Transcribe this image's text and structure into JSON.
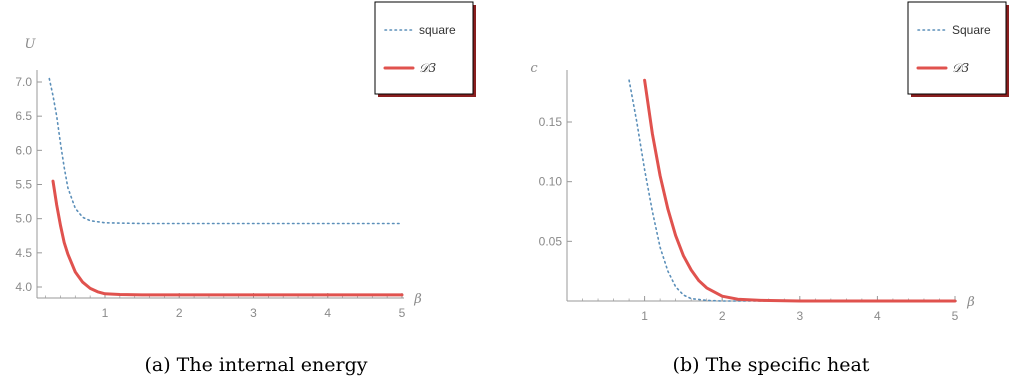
{
  "colors": {
    "square": "#5b8fb9",
    "d3": "#e0524e",
    "axis": "#999999",
    "tick_text": "#8a8a8a"
  },
  "chart_data": [
    {
      "type": "line",
      "caption": "(a)  The internal energy",
      "ylabel": "U",
      "xlabel": "β",
      "xlim": [
        0,
        5
      ],
      "ylim": [
        3.8,
        7.2
      ],
      "axis_origin": [
        0.2,
        3.8
      ],
      "xticks": [
        1,
        2,
        3,
        4,
        5
      ],
      "xtick_labels": [
        "1",
        "2",
        "3",
        "4",
        "5"
      ],
      "yticks": [
        4.0,
        4.5,
        5.0,
        5.5,
        6.0,
        6.5,
        7.0
      ],
      "ytick_labels": [
        "4.0",
        "4.5",
        "5.0",
        "5.5",
        "6.0",
        "6.5",
        "7.0"
      ],
      "legend": {
        "position": "top-right",
        "entries": [
          "square",
          "𝒟3"
        ]
      },
      "series": [
        {
          "name": "square",
          "style": "dotted",
          "x": [
            0.25,
            0.3,
            0.35,
            0.4,
            0.45,
            0.5,
            0.6,
            0.7,
            0.8,
            1.0,
            1.5,
            2,
            3,
            4,
            5
          ],
          "y": [
            7.05,
            6.8,
            6.5,
            6.1,
            5.75,
            5.45,
            5.15,
            5.02,
            4.97,
            4.94,
            4.93,
            4.93,
            4.93,
            4.93,
            4.93
          ]
        },
        {
          "name": "𝒟3",
          "style": "solid",
          "x": [
            0.3,
            0.35,
            0.4,
            0.45,
            0.5,
            0.6,
            0.7,
            0.8,
            0.9,
            1.0,
            1.2,
            1.5,
            2,
            3,
            4,
            5
          ],
          "y": [
            5.55,
            5.2,
            4.9,
            4.65,
            4.48,
            4.22,
            4.07,
            3.98,
            3.93,
            3.9,
            3.89,
            3.885,
            3.885,
            3.885,
            3.885,
            3.885
          ]
        }
      ]
    },
    {
      "type": "line",
      "caption": "(b)  The specific heat",
      "ylabel": "c_V",
      "xlabel": "β",
      "xlim": [
        0,
        5
      ],
      "ylim": [
        0,
        0.19
      ],
      "axis_origin": [
        0,
        0
      ],
      "xticks": [
        1,
        2,
        3,
        4,
        5
      ],
      "xtick_labels": [
        "1",
        "2",
        "3",
        "4",
        "5"
      ],
      "yticks": [
        0.05,
        0.1,
        0.15
      ],
      "ytick_labels": [
        "0.05",
        "0.10",
        "0.15"
      ],
      "legend": {
        "position": "top-right",
        "entries": [
          "Square",
          "𝒟3"
        ]
      },
      "series": [
        {
          "name": "Square",
          "style": "dotted",
          "x": [
            0.8,
            0.9,
            1.0,
            1.1,
            1.2,
            1.3,
            1.4,
            1.5,
            1.6,
            1.8,
            2.0,
            3,
            4,
            5
          ],
          "y": [
            0.185,
            0.15,
            0.11,
            0.075,
            0.045,
            0.025,
            0.012,
            0.005,
            0.002,
            0.0005,
            0,
            0,
            0,
            0
          ]
        },
        {
          "name": "𝒟3",
          "style": "solid",
          "x": [
            1.0,
            1.1,
            1.2,
            1.3,
            1.4,
            1.5,
            1.6,
            1.7,
            1.8,
            2.0,
            2.2,
            2.5,
            3,
            4,
            5
          ],
          "y": [
            0.185,
            0.14,
            0.105,
            0.077,
            0.055,
            0.038,
            0.026,
            0.017,
            0.011,
            0.004,
            0.0015,
            0.0005,
            0,
            0,
            0
          ]
        }
      ]
    }
  ]
}
